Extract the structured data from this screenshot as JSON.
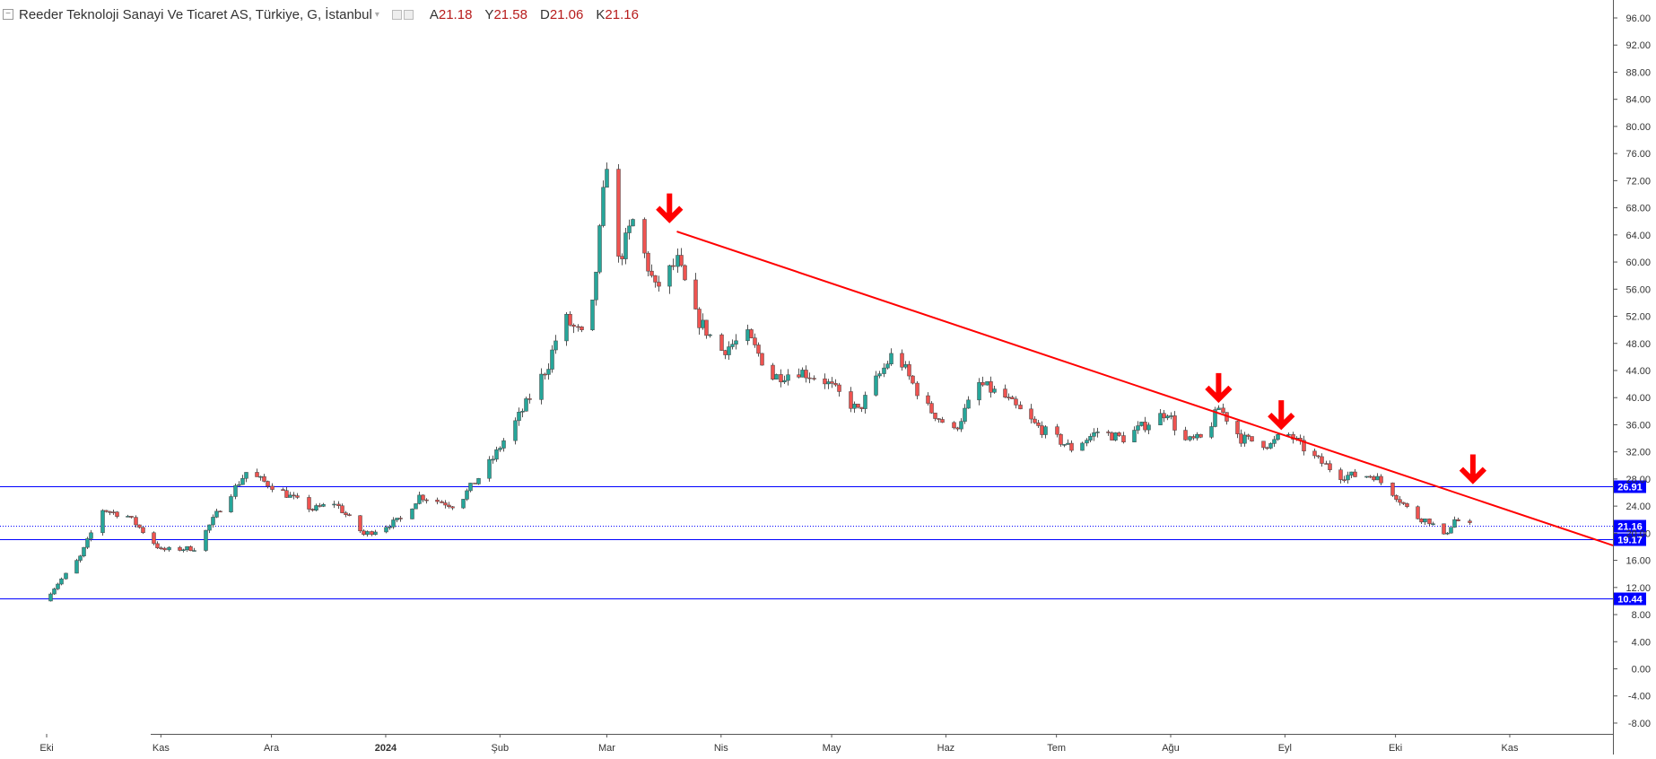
{
  "header": {
    "symbol_title": "Reeder Teknoloji Sanayi Ve Ticaret AS, Türkiye, G, İstanbul",
    "ohlc": [
      {
        "label": "A",
        "value": "21.18"
      },
      {
        "label": "Y",
        "value": "21.58"
      },
      {
        "label": "D",
        "value": "21.06"
      },
      {
        "label": "K",
        "value": "21.16"
      }
    ]
  },
  "colors": {
    "up": "#26a69a",
    "down": "#ef5350",
    "wick": "#555555",
    "horizontal_line": "#0000ff",
    "trend_line": "#ff0000",
    "arrow": "#ff0000",
    "axis_text": "#333333",
    "price_label_bg": "#0000ff",
    "price_label_text": "#ffffff"
  },
  "chart_data": {
    "type": "candlestick",
    "ylim": [
      -10,
      98
    ],
    "y_ticks": [
      "96.00",
      "92.00",
      "88.00",
      "84.00",
      "80.00",
      "76.00",
      "72.00",
      "68.00",
      "64.00",
      "60.00",
      "56.00",
      "52.00",
      "48.00",
      "44.00",
      "40.00",
      "36.00",
      "32.00",
      "28.00",
      "24.00",
      "20.00",
      "16.00",
      "12.00",
      "8.00",
      "4.00",
      "0.00",
      "-4.00",
      "-8.00"
    ],
    "x_axis": {
      "start": "2023-10-01",
      "end": "2024-11-29",
      "labels": [
        {
          "text": "Eki",
          "date": "2023-10-01"
        },
        {
          "text": "Kas",
          "date": "2023-11-01"
        },
        {
          "text": "Ara",
          "date": "2023-12-01"
        },
        {
          "text": "2024",
          "date": "2024-01-01"
        },
        {
          "text": "Şub",
          "date": "2024-02-01"
        },
        {
          "text": "Mar",
          "date": "2024-03-01"
        },
        {
          "text": "Nis",
          "date": "2024-04-01"
        },
        {
          "text": "May",
          "date": "2024-05-01"
        },
        {
          "text": "Haz",
          "date": "2024-06-01"
        },
        {
          "text": "Tem",
          "date": "2024-07-01"
        },
        {
          "text": "Ağu",
          "date": "2024-08-01"
        },
        {
          "text": "Eyl",
          "date": "2024-09-01"
        },
        {
          "text": "Eki",
          "date": "2024-10-01"
        },
        {
          "text": "Kas",
          "date": "2024-11-01"
        }
      ]
    },
    "price_path": [
      [
        "2023-09-30",
        10.0
      ],
      [
        "2023-10-10",
        16.5
      ],
      [
        "2023-10-16",
        23.5
      ],
      [
        "2023-10-23",
        22.5
      ],
      [
        "2023-11-01",
        17.5
      ],
      [
        "2023-11-10",
        17.8
      ],
      [
        "2023-11-18",
        24.5
      ],
      [
        "2023-11-24",
        29.0
      ],
      [
        "2023-12-01",
        27.0
      ],
      [
        "2023-12-12",
        23.5
      ],
      [
        "2023-12-18",
        24.5
      ],
      [
        "2023-12-26",
        19.8
      ],
      [
        "2024-01-05",
        22.0
      ],
      [
        "2024-01-10",
        25.5
      ],
      [
        "2024-01-20",
        24.0
      ],
      [
        "2024-01-30",
        31.0
      ],
      [
        "2024-02-08",
        39.0
      ],
      [
        "2024-02-14",
        45.0
      ],
      [
        "2024-02-18",
        52.0
      ],
      [
        "2024-02-25",
        48.0
      ],
      [
        "2024-03-01",
        75.0
      ],
      [
        "2024-03-04",
        60.0
      ],
      [
        "2024-03-08",
        66.0
      ],
      [
        "2024-03-14",
        56.0
      ],
      [
        "2024-03-20",
        60.0
      ],
      [
        "2024-03-25",
        52.0
      ],
      [
        "2024-04-01",
        47.0
      ],
      [
        "2024-04-08",
        49.0
      ],
      [
        "2024-04-15",
        43.0
      ],
      [
        "2024-04-22",
        44.0
      ],
      [
        "2024-04-29",
        42.5
      ],
      [
        "2024-05-08",
        38.0
      ],
      [
        "2024-05-18",
        47.0
      ],
      [
        "2024-05-26",
        39.0
      ],
      [
        "2024-06-03",
        35.0
      ],
      [
        "2024-06-10",
        42.0
      ],
      [
        "2024-06-17",
        40.0
      ],
      [
        "2024-06-25",
        36.0
      ],
      [
        "2024-07-05",
        32.5
      ],
      [
        "2024-07-12",
        35.0
      ],
      [
        "2024-07-19",
        34.0
      ],
      [
        "2024-07-31",
        38.0
      ],
      [
        "2024-08-04",
        33.5
      ],
      [
        "2024-08-10",
        34.0
      ],
      [
        "2024-08-14",
        38.5
      ],
      [
        "2024-08-20",
        34.0
      ],
      [
        "2024-08-28",
        33.0
      ],
      [
        "2024-09-01",
        35.0
      ],
      [
        "2024-09-08",
        31.5
      ],
      [
        "2024-09-16",
        28.5
      ],
      [
        "2024-09-25",
        28.5
      ],
      [
        "2024-10-01",
        25.5
      ],
      [
        "2024-10-06",
        22.5
      ],
      [
        "2024-10-10",
        21.8
      ],
      [
        "2024-10-14",
        19.5
      ],
      [
        "2024-10-17",
        22.0
      ],
      [
        "2024-10-21",
        21.16
      ]
    ],
    "horizontal_lines": [
      {
        "value": 26.91,
        "label": "26.91"
      },
      {
        "value": 19.17,
        "label": "19.17"
      },
      {
        "value": 10.44,
        "label": "10.44"
      }
    ],
    "last_price": {
      "value": 21.16,
      "label": "21.16"
    },
    "trend_line": {
      "from": [
        "2024-03-20",
        64.5
      ],
      "to": [
        "2024-11-29",
        18.2
      ]
    },
    "arrows": [
      {
        "date": "2024-03-18",
        "value": 68.0
      },
      {
        "date": "2024-08-14",
        "value": 41.5
      },
      {
        "date": "2024-08-31",
        "value": 37.5
      },
      {
        "date": "2024-10-22",
        "value": 29.5
      }
    ]
  }
}
